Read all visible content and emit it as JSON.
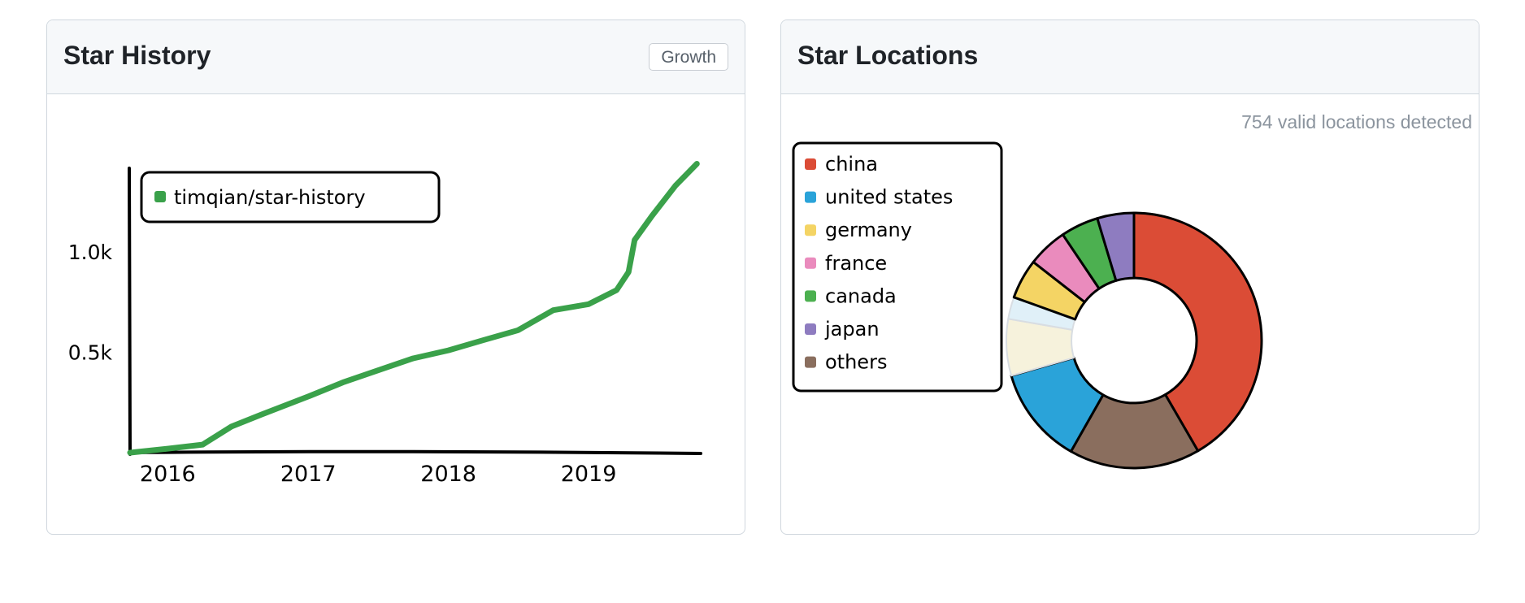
{
  "star_history": {
    "title": "Star History",
    "growth_button": "Growth"
  },
  "star_locations": {
    "title": "Star Locations",
    "caption": "754 valid locations detected"
  },
  "colors": {
    "series": "#3aa14a",
    "china": "#db4c36",
    "united states": "#2aa3d9",
    "germany": "#f4d464",
    "france": "#ea8bbd",
    "canada": "#4cb050",
    "japan": "#8e7cc0",
    "others": "#8a6e5e",
    "hidden_slices": [
      "#f6f2dc",
      "#e0f0f8"
    ]
  },
  "chart_data": [
    {
      "type": "line",
      "title": "",
      "xlabel": "",
      "ylabel": "",
      "x_ticks": [
        "2016",
        "2017",
        "2018",
        "2019"
      ],
      "y_ticks": [
        "0.5k",
        "1.0k"
      ],
      "ylim": [
        0,
        1450
      ],
      "xlim": [
        "2015-09-25",
        "2019-10-20"
      ],
      "legend": "top-left",
      "series": [
        {
          "name": "timqian/star-history",
          "points": [
            [
              "2015-09-25",
              0
            ],
            [
              "2016-01-01",
              20
            ],
            [
              "2016-04-01",
              40
            ],
            [
              "2016-06-15",
              130
            ],
            [
              "2016-09-01",
              190
            ],
            [
              "2017-01-01",
              280
            ],
            [
              "2017-04-01",
              350
            ],
            [
              "2017-07-01",
              410
            ],
            [
              "2017-10-01",
              470
            ],
            [
              "2018-01-01",
              510
            ],
            [
              "2018-04-01",
              560
            ],
            [
              "2018-07-01",
              610
            ],
            [
              "2018-10-01",
              710
            ],
            [
              "2019-01-01",
              740
            ],
            [
              "2019-03-15",
              810
            ],
            [
              "2019-04-15",
              900
            ],
            [
              "2019-05-01",
              1060
            ],
            [
              "2019-06-15",
              1180
            ],
            [
              "2019-08-15",
              1330
            ],
            [
              "2019-10-10",
              1440
            ]
          ]
        }
      ],
      "grid": false
    },
    {
      "type": "pie",
      "title": "",
      "legend": "left",
      "inner_radius_ratio": 0.49,
      "slices": [
        {
          "label": "china",
          "value": 314,
          "show_in_legend": true
        },
        {
          "label": "others",
          "value": 125,
          "show_in_legend": true
        },
        {
          "label": "united states",
          "value": 93,
          "show_in_legend": true
        },
        {
          "label": "",
          "value": 54,
          "show_in_legend": false
        },
        {
          "label": "",
          "value": 21,
          "show_in_legend": false
        },
        {
          "label": "germany",
          "value": 38,
          "show_in_legend": true
        },
        {
          "label": "france",
          "value": 38,
          "show_in_legend": true
        },
        {
          "label": "canada",
          "value": 36,
          "show_in_legend": true
        },
        {
          "label": "japan",
          "value": 35,
          "show_in_legend": true
        }
      ]
    }
  ]
}
